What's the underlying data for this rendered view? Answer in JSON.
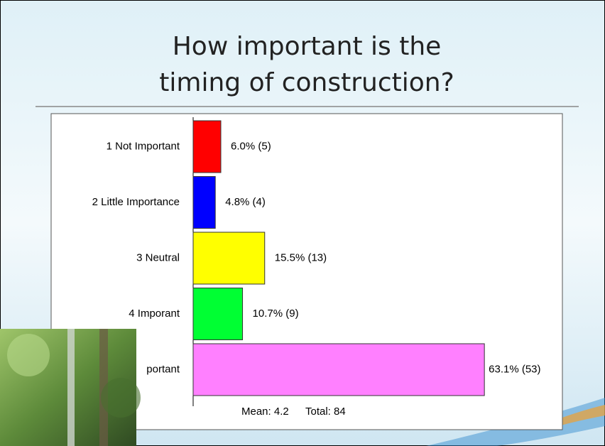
{
  "chart_data": {
    "type": "barh",
    "title_lines": [
      "How important is the",
      "timing of construction?"
    ],
    "categories": [
      "1 Not Important",
      "2 Little Importance",
      "3 Neutral",
      "4 Imporant",
      "portant"
    ],
    "values": [
      6.0,
      4.8,
      15.5,
      10.7,
      63.1
    ],
    "value_labels": [
      "6.0% (5)",
      "4.8% (4)",
      "15.5% (13)",
      "10.7% (9)",
      "63.1% (53)"
    ],
    "colors": [
      "#ff0000",
      "#0000ff",
      "#ffff00",
      "#00ff33",
      "#ff80ff"
    ],
    "footer": [
      "Mean: 4.2",
      "Total: 84"
    ]
  }
}
